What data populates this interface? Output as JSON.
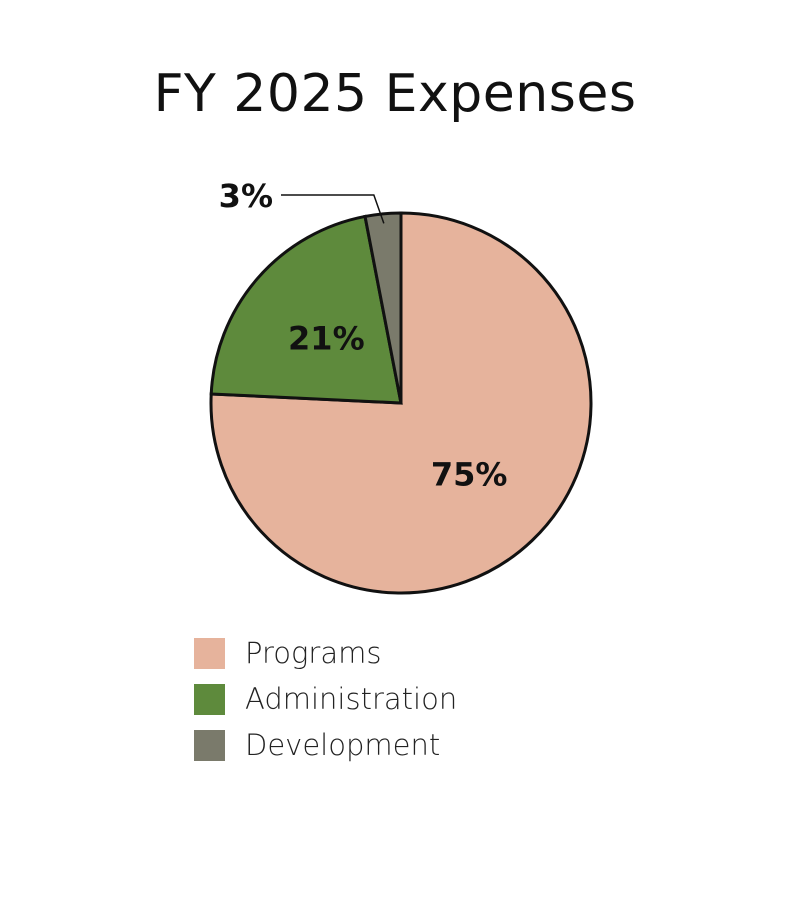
{
  "chart_data": {
    "type": "pie",
    "title": "FY 2025 Expenses",
    "slices": [
      {
        "label": "Programs",
        "value": 75,
        "value_label": "75%",
        "color": "#e6b39c"
      },
      {
        "label": "Administration",
        "value": 21,
        "value_label": "21%",
        "color": "#5e8a3c"
      },
      {
        "label": "Development",
        "value": 3,
        "value_label": "3%",
        "color": "#7a7a6b"
      }
    ],
    "start": "12 o'clock",
    "direction": "clockwise",
    "outline_color": "#111111",
    "legend_position": "bottom-left"
  }
}
